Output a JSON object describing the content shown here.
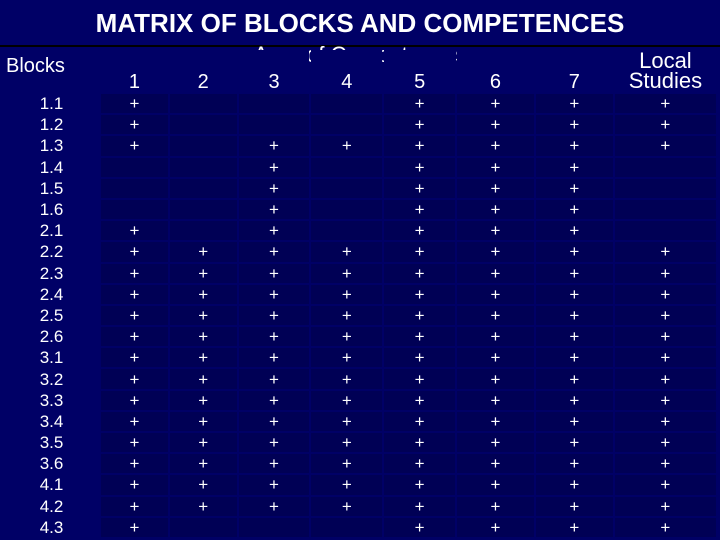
{
  "title": "MATRIX OF BLOCKS AND COMPETENCES",
  "area_title": "Area of Competences",
  "headers": {
    "blocks": "Blocks",
    "columns": [
      "1",
      "2",
      "3",
      "4",
      "5",
      "6",
      "7"
    ],
    "local": "Local Studies"
  },
  "mark": "+",
  "rows": [
    {
      "block": "1.1",
      "cells": [
        "+",
        "",
        "",
        "",
        "+",
        "+",
        "+",
        "+"
      ]
    },
    {
      "block": "1.2",
      "cells": [
        "+",
        "",
        "",
        "",
        "+",
        "+",
        "+",
        "+"
      ]
    },
    {
      "block": "1.3",
      "cells": [
        "+",
        "",
        "+",
        "+",
        "+",
        "+",
        "+",
        "+"
      ]
    },
    {
      "block": "1.4",
      "cells": [
        "",
        "",
        "+",
        "",
        "+",
        "+",
        "+",
        ""
      ]
    },
    {
      "block": "1.5",
      "cells": [
        "",
        "",
        "+",
        "",
        "+",
        "+",
        "+",
        ""
      ]
    },
    {
      "block": "1.6",
      "cells": [
        "",
        "",
        "+",
        "",
        "+",
        "+",
        "+",
        ""
      ]
    },
    {
      "block": "2.1",
      "cells": [
        "+",
        "",
        "+",
        "",
        "+",
        "+",
        "+",
        ""
      ]
    },
    {
      "block": "2.2",
      "cells": [
        "+",
        "+",
        "+",
        "+",
        "+",
        "+",
        "+",
        "+"
      ]
    },
    {
      "block": "2.3",
      "cells": [
        "+",
        "+",
        "+",
        "+",
        "+",
        "+",
        "+",
        "+"
      ]
    },
    {
      "block": "2.4",
      "cells": [
        "+",
        "+",
        "+",
        "+",
        "+",
        "+",
        "+",
        "+"
      ]
    },
    {
      "block": "2.5",
      "cells": [
        "+",
        "+",
        "+",
        "+",
        "+",
        "+",
        "+",
        "+"
      ]
    },
    {
      "block": "2.6",
      "cells": [
        "+",
        "+",
        "+",
        "+",
        "+",
        "+",
        "+",
        "+"
      ]
    },
    {
      "block": "3.1",
      "cells": [
        "+",
        "+",
        "+",
        "+",
        "+",
        "+",
        "+",
        "+"
      ]
    },
    {
      "block": "3.2",
      "cells": [
        "+",
        "+",
        "+",
        "+",
        "+",
        "+",
        "+",
        "+"
      ]
    },
    {
      "block": "3.3",
      "cells": [
        "+",
        "+",
        "+",
        "+",
        "+",
        "+",
        "+",
        "+"
      ]
    },
    {
      "block": "3.4",
      "cells": [
        "+",
        "+",
        "+",
        "+",
        "+",
        "+",
        "+",
        "+"
      ]
    },
    {
      "block": "3.5",
      "cells": [
        "+",
        "+",
        "+",
        "+",
        "+",
        "+",
        "+",
        "+"
      ]
    },
    {
      "block": "3.6",
      "cells": [
        "+",
        "+",
        "+",
        "+",
        "+",
        "+",
        "+",
        "+"
      ]
    },
    {
      "block": "4.1",
      "cells": [
        "+",
        "+",
        "+",
        "+",
        "+",
        "+",
        "+",
        "+"
      ]
    },
    {
      "block": "4.2",
      "cells": [
        "+",
        "+",
        "+",
        "+",
        "+",
        "+",
        "+",
        "+"
      ]
    },
    {
      "block": "4.3",
      "cells": [
        "+",
        "",
        "",
        "",
        "+",
        "+",
        "+",
        "+"
      ]
    }
  ]
}
